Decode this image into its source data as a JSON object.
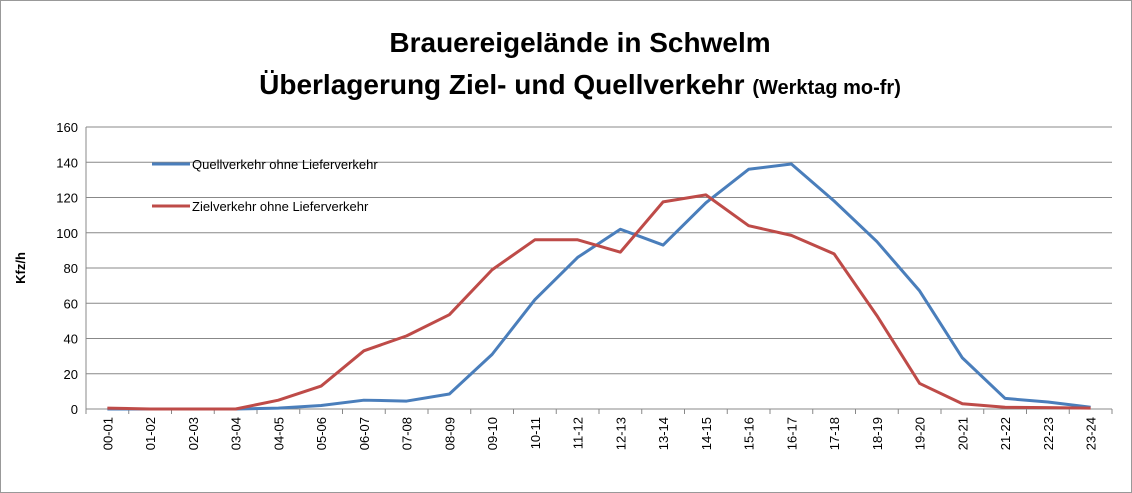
{
  "chart_data": {
    "type": "line",
    "title": "Brauereigelände in Schwelm",
    "subtitle": "Überlagerung Ziel- und Quellverkehr",
    "subtitle_note": "(Werktag mo-fr)",
    "y_label": "Kfz/h",
    "categories": [
      "00-01",
      "01-02",
      "02-03",
      "03-04",
      "04-05",
      "05-06",
      "06-07",
      "07-08",
      "08-09",
      "09-10",
      "10-11",
      "11-12",
      "12-13",
      "13-14",
      "14-15",
      "15-16",
      "16-17",
      "17-18",
      "18-19",
      "19-20",
      "20-21",
      "21-22",
      "22-23",
      "23-24"
    ],
    "series": [
      {
        "name": "Quellverkehr ohne Lieferverkehr",
        "color": "#4a7ebb",
        "values": [
          0,
          0,
          0,
          0,
          0.5,
          2,
          5,
          4.5,
          8.5,
          31,
          62,
          86,
          102,
          93,
          117,
          136,
          139,
          118,
          95,
          67,
          29,
          6,
          4,
          1
        ]
      },
      {
        "name": "Zielverkehr ohne Lieferverkehr",
        "color": "#be4b48",
        "values": [
          0.5,
          0,
          0,
          0,
          5,
          13,
          33,
          41.5,
          53.5,
          79,
          96,
          96,
          89,
          117.5,
          121.5,
          104,
          98.5,
          88,
          53,
          14.5,
          3,
          1,
          0.8,
          0.5
        ]
      }
    ],
    "ylim": [
      0,
      160
    ],
    "yticks": [
      0,
      20,
      40,
      60,
      80,
      100,
      120,
      140,
      160
    ],
    "grid": true,
    "legend": "top-left"
  }
}
